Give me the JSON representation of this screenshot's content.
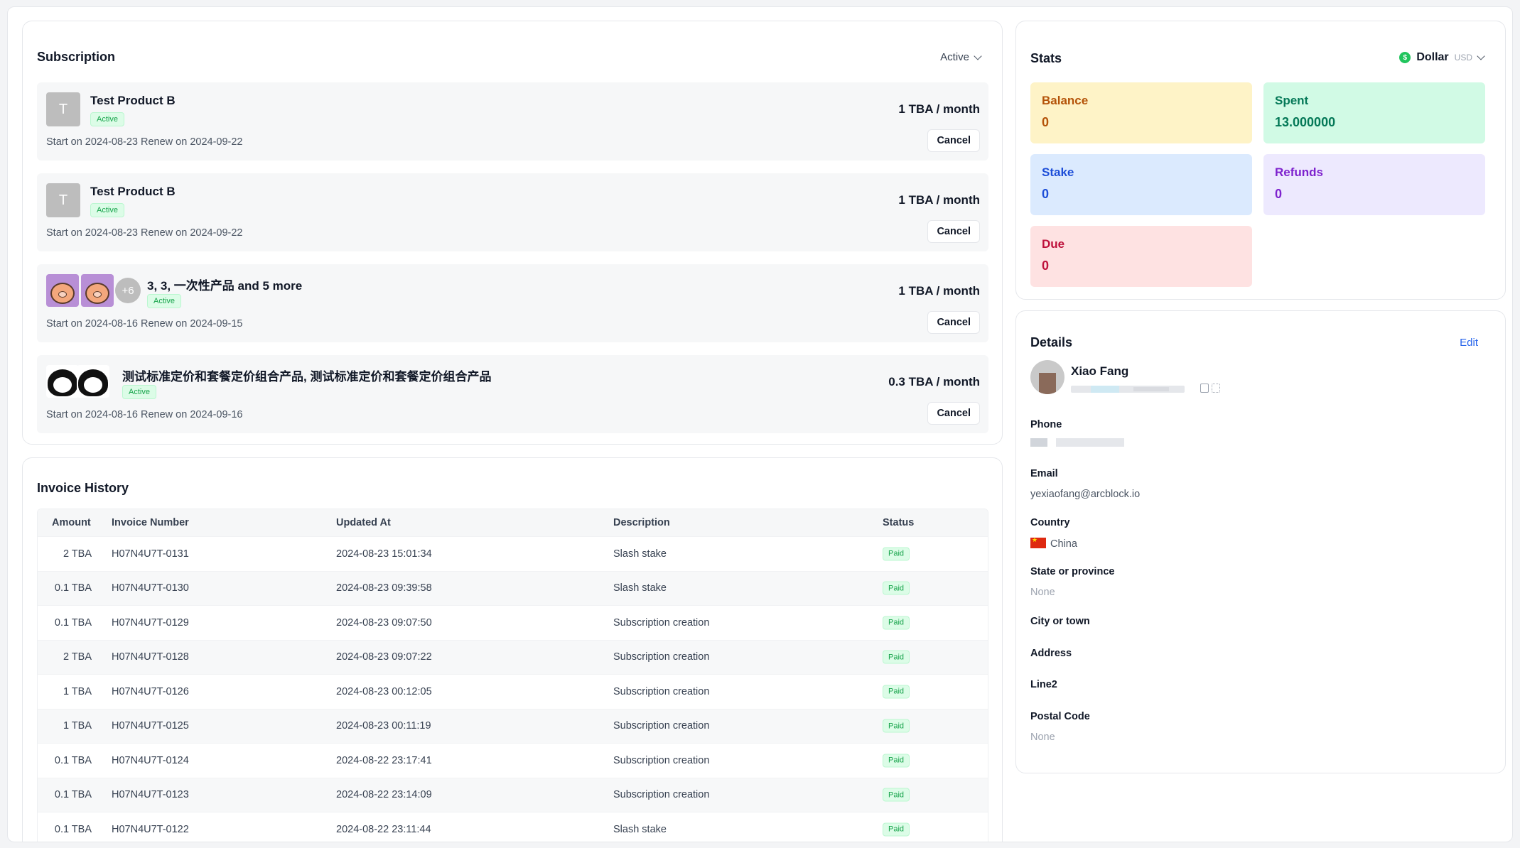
{
  "subscription": {
    "title": "Subscription",
    "filter_label": "Active",
    "items": [
      {
        "avatar": "T",
        "name": "Test Product B",
        "status": "Active",
        "dates": "Start on 2024-08-23 Renew on 2024-09-22",
        "price": "1 TBA / month",
        "cancel": "Cancel"
      },
      {
        "avatar": "T",
        "name": "Test Product B",
        "status": "Active",
        "dates": "Start on 2024-08-23 Renew on 2024-09-22",
        "price": "1 TBA / month",
        "cancel": "Cancel"
      },
      {
        "more": "+6",
        "name": "3, 3, 一次性产品 and 5 more",
        "status": "Active",
        "dates": "Start on 2024-08-16 Renew on 2024-09-15",
        "price": "1 TBA / month",
        "cancel": "Cancel"
      },
      {
        "name": "测试标准定价和套餐定价组合产品, 测试标准定价和套餐定价组合产品",
        "status": "Active",
        "dates": "Start on 2024-08-16 Renew on 2024-09-16",
        "price": "0.3 TBA / month",
        "cancel": "Cancel"
      }
    ]
  },
  "invoices": {
    "title": "Invoice History",
    "columns": [
      "Amount",
      "Invoice Number",
      "Updated At",
      "Description",
      "Status"
    ],
    "rows": [
      {
        "amount": "2 TBA",
        "number": "H07N4U7T-0131",
        "updated": "2024-08-23 15:01:34",
        "description": "Slash stake",
        "status": "Paid"
      },
      {
        "amount": "0.1 TBA",
        "number": "H07N4U7T-0130",
        "updated": "2024-08-23 09:39:58",
        "description": "Slash stake",
        "status": "Paid"
      },
      {
        "amount": "0.1 TBA",
        "number": "H07N4U7T-0129",
        "updated": "2024-08-23 09:07:50",
        "description": "Subscription creation",
        "status": "Paid"
      },
      {
        "amount": "2 TBA",
        "number": "H07N4U7T-0128",
        "updated": "2024-08-23 09:07:22",
        "description": "Subscription creation",
        "status": "Paid"
      },
      {
        "amount": "1 TBA",
        "number": "H07N4U7T-0126",
        "updated": "2024-08-23 00:12:05",
        "description": "Subscription creation",
        "status": "Paid"
      },
      {
        "amount": "1 TBA",
        "number": "H07N4U7T-0125",
        "updated": "2024-08-23 00:11:19",
        "description": "Subscription creation",
        "status": "Paid"
      },
      {
        "amount": "0.1 TBA",
        "number": "H07N4U7T-0124",
        "updated": "2024-08-22 23:17:41",
        "description": "Subscription creation",
        "status": "Paid"
      },
      {
        "amount": "0.1 TBA",
        "number": "H07N4U7T-0123",
        "updated": "2024-08-22 23:14:09",
        "description": "Subscription creation",
        "status": "Paid"
      },
      {
        "amount": "0.1 TBA",
        "number": "H07N4U7T-0122",
        "updated": "2024-08-22 23:11:44",
        "description": "Slash stake",
        "status": "Paid"
      }
    ]
  },
  "stats": {
    "title": "Stats",
    "currency": {
      "icon": "dollar-coin-icon",
      "symbol": "$",
      "name": "Dollar",
      "code": "USD"
    },
    "balance": {
      "label": "Balance",
      "value": "0",
      "bg": "#fef3c7",
      "color": "#b45309"
    },
    "spent": {
      "label": "Spent",
      "value": "13.000000",
      "bg": "#d1fae5",
      "color": "#047857"
    },
    "stake": {
      "label": "Stake",
      "value": "0",
      "bg": "#dbeafe",
      "color": "#1d4ed8"
    },
    "refunds": {
      "label": "Refunds",
      "value": "0",
      "bg": "#ede9fe",
      "color": "#7e22ce"
    },
    "due": {
      "label": "Due",
      "value": "0",
      "bg": "#fee2e2",
      "color": "#be123c"
    }
  },
  "details": {
    "title": "Details",
    "edit": "Edit",
    "name": "Xiao Fang",
    "phone_label": "Phone",
    "email_label": "Email",
    "email": "yexiaofang@arcblock.io",
    "country_label": "Country",
    "country": "China",
    "state_label": "State or province",
    "state": "None",
    "city_label": "City or town",
    "address_label": "Address",
    "line2_label": "Line2",
    "postal_label": "Postal Code",
    "postal": "None"
  }
}
